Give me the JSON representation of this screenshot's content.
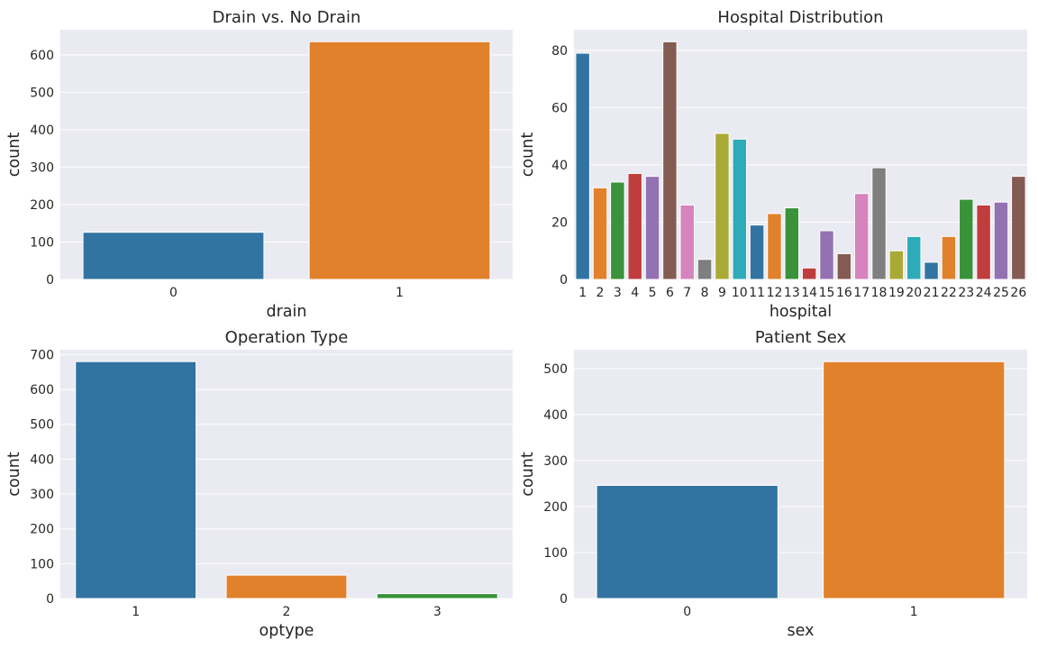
{
  "chart_data": [
    {
      "type": "bar",
      "title": "Drain vs. No Drain",
      "xlabel": "drain",
      "ylabel": "count",
      "categories": [
        "0",
        "1"
      ],
      "values": [
        126,
        635
      ],
      "ylim": [
        0,
        667
      ],
      "yticks": [
        0,
        100,
        200,
        300,
        400,
        500,
        600
      ],
      "grid": true
    },
    {
      "type": "bar",
      "title": "Hospital Distribution",
      "xlabel": "hospital",
      "ylabel": "count",
      "categories": [
        "1",
        "2",
        "3",
        "4",
        "5",
        "6",
        "7",
        "8",
        "9",
        "10",
        "11",
        "12",
        "13",
        "14",
        "15",
        "16",
        "17",
        "18",
        "19",
        "20",
        "21",
        "22",
        "23",
        "24",
        "25",
        "26"
      ],
      "values": [
        79,
        32,
        34,
        37,
        36,
        83,
        26,
        7,
        51,
        49,
        19,
        23,
        25,
        4,
        17,
        9,
        30,
        39,
        10,
        15,
        6,
        15,
        28,
        26,
        27,
        36
      ],
      "ylim": [
        0,
        87.2
      ],
      "yticks": [
        0,
        20,
        40,
        60,
        80
      ],
      "grid": true
    },
    {
      "type": "bar",
      "title": "Operation Type",
      "xlabel": "optype",
      "ylabel": "count",
      "categories": [
        "1",
        "2",
        "3"
      ],
      "values": [
        680,
        67,
        14
      ],
      "ylim": [
        0,
        714
      ],
      "yticks": [
        0,
        100,
        200,
        300,
        400,
        500,
        600,
        700
      ],
      "grid": true
    },
    {
      "type": "bar",
      "title": "Patient Sex",
      "xlabel": "sex",
      "ylabel": "count",
      "categories": [
        "0",
        "1"
      ],
      "values": [
        246,
        515
      ],
      "ylim": [
        0,
        541
      ],
      "yticks": [
        0,
        100,
        200,
        300,
        400,
        500
      ],
      "grid": true
    }
  ],
  "palette": [
    "#1f77b4",
    "#ff7f0e",
    "#2ca02c",
    "#d62728",
    "#9467bd",
    "#8c564b",
    "#e377c2",
    "#7f7f7f",
    "#bcbd22",
    "#17becf"
  ],
  "style": {
    "axes_bg": "#eaeaf2",
    "grid_color": "#ffffff",
    "text_color": "#262626",
    "saturation": 0.75
  }
}
